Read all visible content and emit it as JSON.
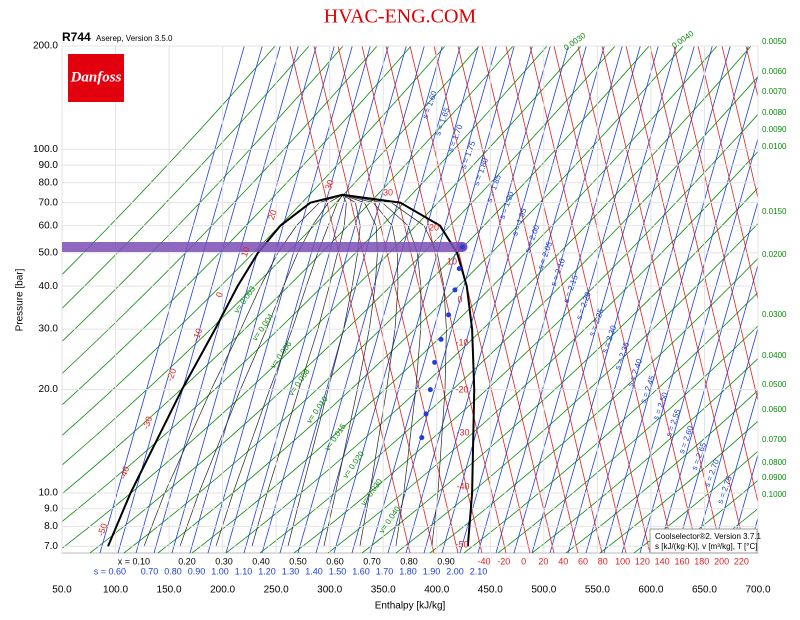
{
  "header": {
    "refrigerant": "R744",
    "source": "Aserep, Version 3.5.0",
    "watermark": "HVAC-ENG.COM",
    "logo": "Danfoss"
  },
  "legend_box": {
    "line1": "Coolselector®2. Version 3.7.1",
    "line2": "s [kJ/(kg·K)], v [m³/kg], T [°C]"
  },
  "chart_data": {
    "type": "line",
    "xlabel": "Enthalpy [kJ/kg]",
    "ylabel": "Pressure [bar]",
    "log_y": true,
    "grid": true,
    "xlim": [
      50,
      700
    ],
    "xticks": [
      {
        "value": 50,
        "label": "50.0"
      },
      {
        "value": 100,
        "label": "100.0"
      },
      {
        "value": 150,
        "label": "150.0"
      },
      {
        "value": 200,
        "label": "200.0"
      },
      {
        "value": 250,
        "label": "250.0"
      },
      {
        "value": 300,
        "label": "300.0"
      },
      {
        "value": 350,
        "label": "350.0"
      },
      {
        "value": 400,
        "label": "400.0"
      },
      {
        "value": 450,
        "label": "450.0"
      },
      {
        "value": 500,
        "label": "500.0"
      },
      {
        "value": 550,
        "label": "550.0"
      },
      {
        "value": 600,
        "label": "600.0"
      },
      {
        "value": 650,
        "label": "650.0"
      },
      {
        "value": 700,
        "label": "700.0"
      }
    ],
    "ylim": [
      6.69,
      200
    ],
    "yticks": [
      {
        "value": 7,
        "label": "7.0"
      },
      {
        "value": 8,
        "label": "8.0"
      },
      {
        "value": 9,
        "label": "9.0"
      },
      {
        "value": 10,
        "label": "10.0"
      },
      {
        "value": 20,
        "label": "20.0"
      },
      {
        "value": 30,
        "label": "30.0"
      },
      {
        "value": 40,
        "label": "40.0"
      },
      {
        "value": 50,
        "label": "50.0"
      },
      {
        "value": 60,
        "label": "60.0"
      },
      {
        "value": 70,
        "label": "70.0"
      },
      {
        "value": 80,
        "label": "80.0"
      },
      {
        "value": 90,
        "label": "90.0"
      },
      {
        "value": 100,
        "label": "100.0"
      },
      {
        "value": 200,
        "label": "200.0"
      }
    ],
    "series": [
      {
        "color": "#000000",
        "x": [
          93,
          114,
          162,
          193,
          214,
          233,
          254,
          282,
          312,
          366,
          403,
          419,
          428,
          433,
          435,
          433,
          429
        ],
        "values": [
          7,
          10,
          20,
          30,
          40,
          50,
          60,
          70,
          73.8,
          70,
          60,
          50,
          40,
          30,
          20,
          10,
          7
        ]
      },
      {
        "color": "#7b4fb5",
        "x": [
          50,
          424
        ],
        "values": [
          52,
          52
        ]
      },
      {
        "color": "#1f3fd8",
        "style": "points",
        "x": [
          424,
          421,
          417,
          411,
          404,
          398,
          394,
          390,
          386
        ],
        "values": [
          52,
          45,
          39,
          33,
          28,
          24,
          20,
          17,
          14.5
        ]
      }
    ],
    "quality_labels": [
      "x = 0.10",
      "0.20",
      "0.30",
      "0.40",
      "0.50",
      "0.60",
      "0.70",
      "0.80",
      "0.90"
    ],
    "entropy_row_labels": [
      "s = 0.60",
      "0.70",
      "0.80",
      "0.90",
      "1.00",
      "1.10",
      "1.20",
      "1.30",
      "1.40",
      "1.50",
      "1.60",
      "1.70",
      "1.80",
      "1.90",
      "2.00",
      "2.10"
    ],
    "temperature_row_labels": [
      "-40",
      "-20",
      "0",
      "20",
      "40",
      "60",
      "80",
      "100",
      "120",
      "140",
      "160",
      "180",
      "200",
      "220"
    ],
    "isotherm_labels_left": [
      "-50",
      "-40",
      "-30",
      "-20",
      "-10",
      "0",
      "10",
      "20",
      "30"
    ],
    "isotherm_labels_right": [
      "30",
      "20",
      "10",
      "0",
      "-10",
      "-20",
      "-30",
      "-40",
      "-50"
    ],
    "isentrope_labels": [
      "s = 1.60",
      "s = 1.65",
      "s = 1.70",
      "s = 1.75",
      "s = 1.80",
      "s = 1.85",
      "s = 1.90",
      "s = 1.95",
      "s = 2.00",
      "s = 2.05",
      "s = 2.10",
      "s = 2.15",
      "s = 2.20",
      "s = 2.25",
      "s = 2.30",
      "s = 2.35",
      "s = 2.40",
      "s = 2.45",
      "s = 2.50",
      "s = 2.55",
      "s = 2.60",
      "s = 2.65",
      "s = 2.70",
      "s = 2.75"
    ],
    "volume_labels_inside": [
      "v= 0.003",
      "v= 0.004",
      "v= 0.006",
      "v= 0.008",
      "v= 0.010",
      "v= 0.015",
      "v= 0.020",
      "v= 0.030",
      "v= 0.040"
    ],
    "volume_labels_top": [
      "0.0030",
      "0.0040"
    ],
    "volume_labels_right": [
      "0.0050",
      "0.0060",
      "0.0070",
      "0.0080",
      "0.0090",
      "0.0100",
      "0.0150",
      "0.0200",
      "0.0300",
      "0.0400",
      "0.0500",
      "0.0600",
      "0.0700",
      "0.0800",
      "0.0900",
      "0.1000"
    ]
  }
}
